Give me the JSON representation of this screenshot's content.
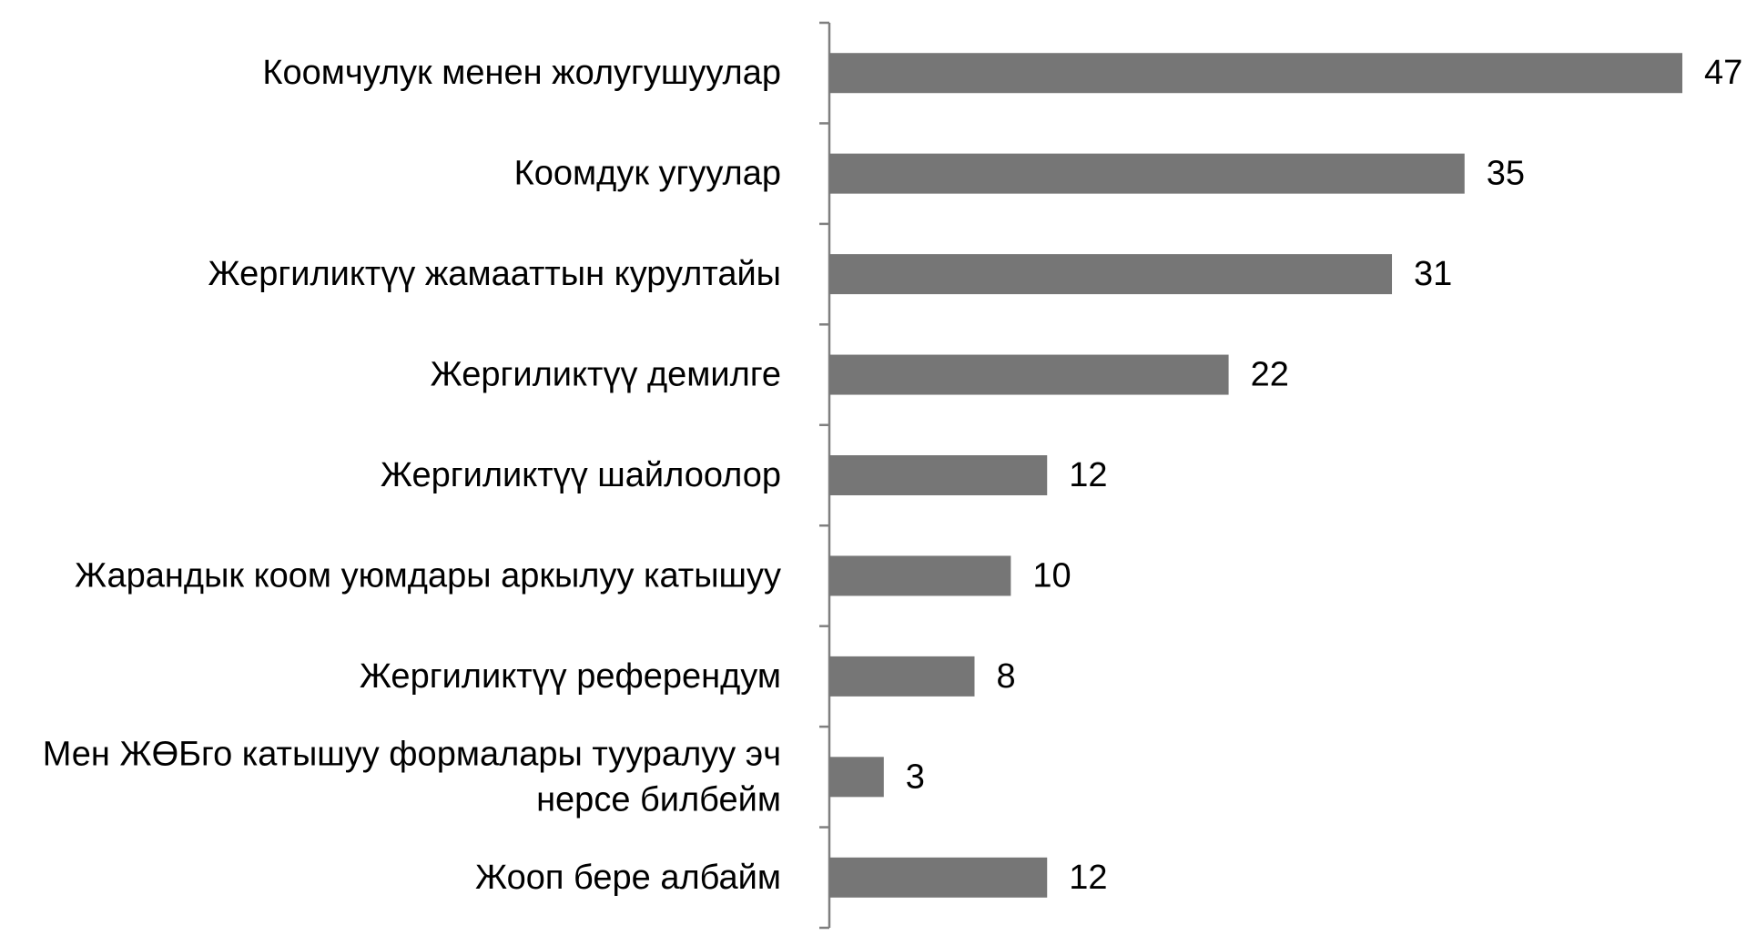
{
  "chart_data": {
    "type": "bar",
    "orientation": "horizontal",
    "title": "",
    "xlabel": "",
    "ylabel": "",
    "xlim": [
      0,
      47
    ],
    "grid": false,
    "legend": "none",
    "bar_color": "#767676",
    "axis_color": "#7f7f7f",
    "categories": [
      [
        "Коомчулук менен жолугушуулар"
      ],
      [
        "Коомдук угуулар"
      ],
      [
        "Жергиликтүү жамааттын курултайы"
      ],
      [
        "Жергиликтүү демилге"
      ],
      [
        "Жергиликтүү шайлоолор"
      ],
      [
        "Жарандык коом уюмдары аркылуу катышуу"
      ],
      [
        "Жергиликтүү референдум"
      ],
      [
        "Мен ЖӨБго катышуу формалары тууралуу эч",
        "нерсе билбейм"
      ],
      [
        "Жооп бере албайм"
      ]
    ],
    "values": [
      47,
      35,
      31,
      22,
      12,
      10,
      8,
      3,
      12
    ]
  }
}
